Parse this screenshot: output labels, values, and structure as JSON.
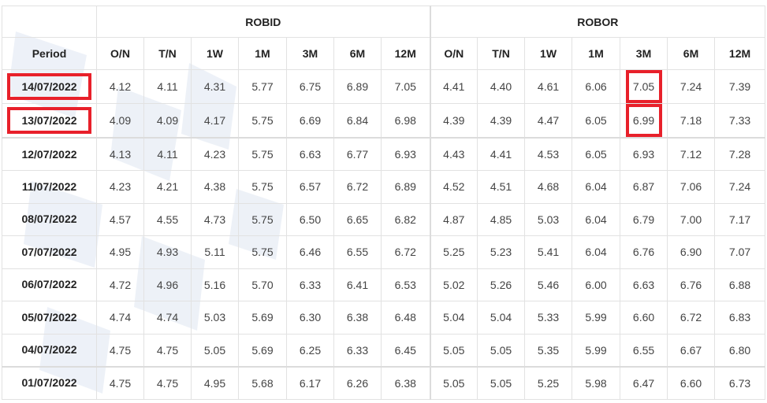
{
  "colors": {
    "highlight": "#e8202a",
    "border": "#e2e2e2",
    "text": "#444444",
    "watermark": "#dde4f0"
  },
  "table": {
    "groups": [
      {
        "label": "ROBID"
      },
      {
        "label": "ROBOR"
      }
    ],
    "period_header": "Period",
    "robid_columns": [
      "O/N",
      "T/N",
      "1W",
      "1M",
      "3M",
      "6M",
      "12M"
    ],
    "robor_columns": [
      "O/N",
      "T/N",
      "1W",
      "1M",
      "3M",
      "6M",
      "12M"
    ],
    "rows": [
      {
        "period": "14/07/2022",
        "robid": [
          "4.12",
          "4.11",
          "4.31",
          "5.77",
          "6.75",
          "6.89",
          "7.05"
        ],
        "robor": [
          "4.41",
          "4.40",
          "4.61",
          "6.06",
          "7.05",
          "7.24",
          "7.39"
        ],
        "period_highlighted": true,
        "highlight_col": 4
      },
      {
        "period": "13/07/2022",
        "robid": [
          "4.09",
          "4.09",
          "4.17",
          "5.75",
          "6.69",
          "6.84",
          "6.98"
        ],
        "robor": [
          "4.39",
          "4.39",
          "4.47",
          "6.05",
          "6.99",
          "7.18",
          "7.33"
        ],
        "period_highlighted": true,
        "highlight_col": 4
      },
      {
        "period": "12/07/2022",
        "robid": [
          "4.13",
          "4.11",
          "4.23",
          "5.75",
          "6.63",
          "6.77",
          "6.93"
        ],
        "robor": [
          "4.43",
          "4.41",
          "4.53",
          "6.05",
          "6.93",
          "7.12",
          "7.28"
        ]
      },
      {
        "period": "11/07/2022",
        "robid": [
          "4.23",
          "4.21",
          "4.38",
          "5.75",
          "6.57",
          "6.72",
          "6.89"
        ],
        "robor": [
          "4.52",
          "4.51",
          "4.68",
          "6.04",
          "6.87",
          "7.06",
          "7.24"
        ]
      },
      {
        "period": "08/07/2022",
        "robid": [
          "4.57",
          "4.55",
          "4.73",
          "5.75",
          "6.50",
          "6.65",
          "6.82"
        ],
        "robor": [
          "4.87",
          "4.85",
          "5.03",
          "6.04",
          "6.79",
          "7.00",
          "7.17"
        ]
      },
      {
        "period": "07/07/2022",
        "robid": [
          "4.95",
          "4.93",
          "5.11",
          "5.75",
          "6.46",
          "6.55",
          "6.72"
        ],
        "robor": [
          "5.25",
          "5.23",
          "5.41",
          "6.04",
          "6.76",
          "6.90",
          "7.07"
        ]
      },
      {
        "period": "06/07/2022",
        "robid": [
          "4.72",
          "4.96",
          "5.16",
          "5.70",
          "6.33",
          "6.41",
          "6.53"
        ],
        "robor": [
          "5.02",
          "5.26",
          "5.46",
          "6.00",
          "6.63",
          "6.76",
          "6.88"
        ]
      },
      {
        "period": "05/07/2022",
        "robid": [
          "4.74",
          "4.74",
          "5.03",
          "5.69",
          "6.30",
          "6.38",
          "6.48"
        ],
        "robor": [
          "5.04",
          "5.04",
          "5.33",
          "5.99",
          "6.60",
          "6.72",
          "6.83"
        ]
      },
      {
        "period": "04/07/2022",
        "robid": [
          "4.75",
          "4.75",
          "5.05",
          "5.69",
          "6.25",
          "6.33",
          "6.45"
        ],
        "robor": [
          "5.05",
          "5.05",
          "5.35",
          "5.99",
          "6.55",
          "6.67",
          "6.80"
        ]
      },
      {
        "period": "01/07/2022",
        "robid": [
          "4.75",
          "4.75",
          "4.95",
          "5.68",
          "6.17",
          "6.26",
          "6.38"
        ],
        "robor": [
          "5.05",
          "5.05",
          "5.25",
          "5.98",
          "6.47",
          "6.60",
          "6.73"
        ]
      }
    ]
  }
}
